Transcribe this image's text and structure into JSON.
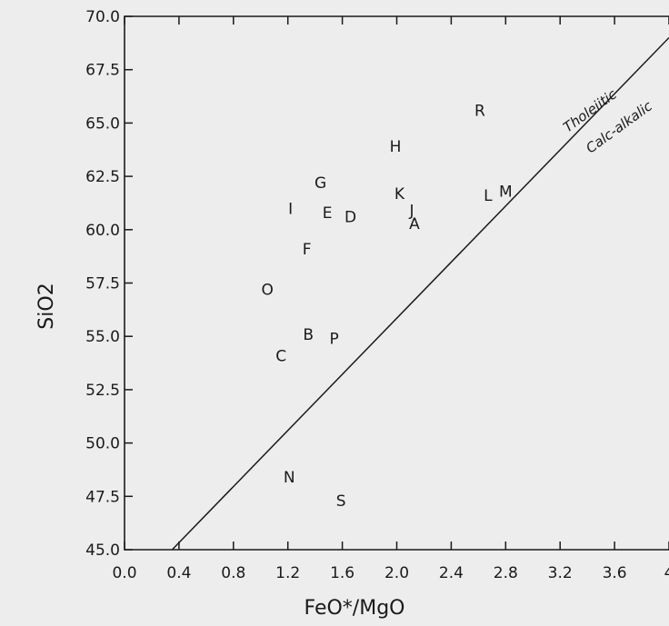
{
  "chart_data": {
    "type": "scatter",
    "title": "",
    "xlabel": "FeO*/MgO",
    "ylabel": "SiO2",
    "xlim": [
      0.0,
      4.0
    ],
    "ylim": [
      45.0,
      70.0
    ],
    "xticks": [
      "0.0",
      "0.4",
      "0.8",
      "1.2",
      "1.6",
      "2.0",
      "2.4",
      "2.8",
      "3.2",
      "3.6",
      "4"
    ],
    "yticks": [
      "45.0",
      "47.5",
      "50.0",
      "52.5",
      "55.0",
      "57.5",
      "60.0",
      "62.5",
      "65.0",
      "67.5",
      "70.0"
    ],
    "grid": false,
    "points": [
      {
        "label": "A",
        "x": 2.13,
        "y": 60.3
      },
      {
        "label": "B",
        "x": 1.35,
        "y": 55.1
      },
      {
        "label": "C",
        "x": 1.15,
        "y": 54.1
      },
      {
        "label": "D",
        "x": 1.66,
        "y": 60.6
      },
      {
        "label": "E",
        "x": 1.49,
        "y": 60.8
      },
      {
        "label": "F",
        "x": 1.34,
        "y": 59.1
      },
      {
        "label": "G",
        "x": 1.44,
        "y": 62.2
      },
      {
        "label": "H",
        "x": 1.99,
        "y": 63.9
      },
      {
        "label": "I",
        "x": 1.22,
        "y": 61.0
      },
      {
        "label": "J",
        "x": 2.11,
        "y": 60.9
      },
      {
        "label": "K",
        "x": 2.02,
        "y": 61.7
      },
      {
        "label": "L",
        "x": 2.67,
        "y": 61.6
      },
      {
        "label": "M",
        "x": 2.8,
        "y": 61.8
      },
      {
        "label": "N",
        "x": 1.21,
        "y": 48.4
      },
      {
        "label": "O",
        "x": 1.05,
        "y": 57.2
      },
      {
        "label": "P",
        "x": 1.54,
        "y": 54.9
      },
      {
        "label": "R",
        "x": 2.61,
        "y": 65.6
      },
      {
        "label": "S",
        "x": 1.59,
        "y": 47.3
      }
    ],
    "divider_line": {
      "x0": 0.35,
      "y0": 45.0,
      "x1": 4.0,
      "y1": 69.0
    },
    "region_labels": {
      "upper": "Tholeiitic",
      "lower": "Calc-alkalic"
    }
  }
}
